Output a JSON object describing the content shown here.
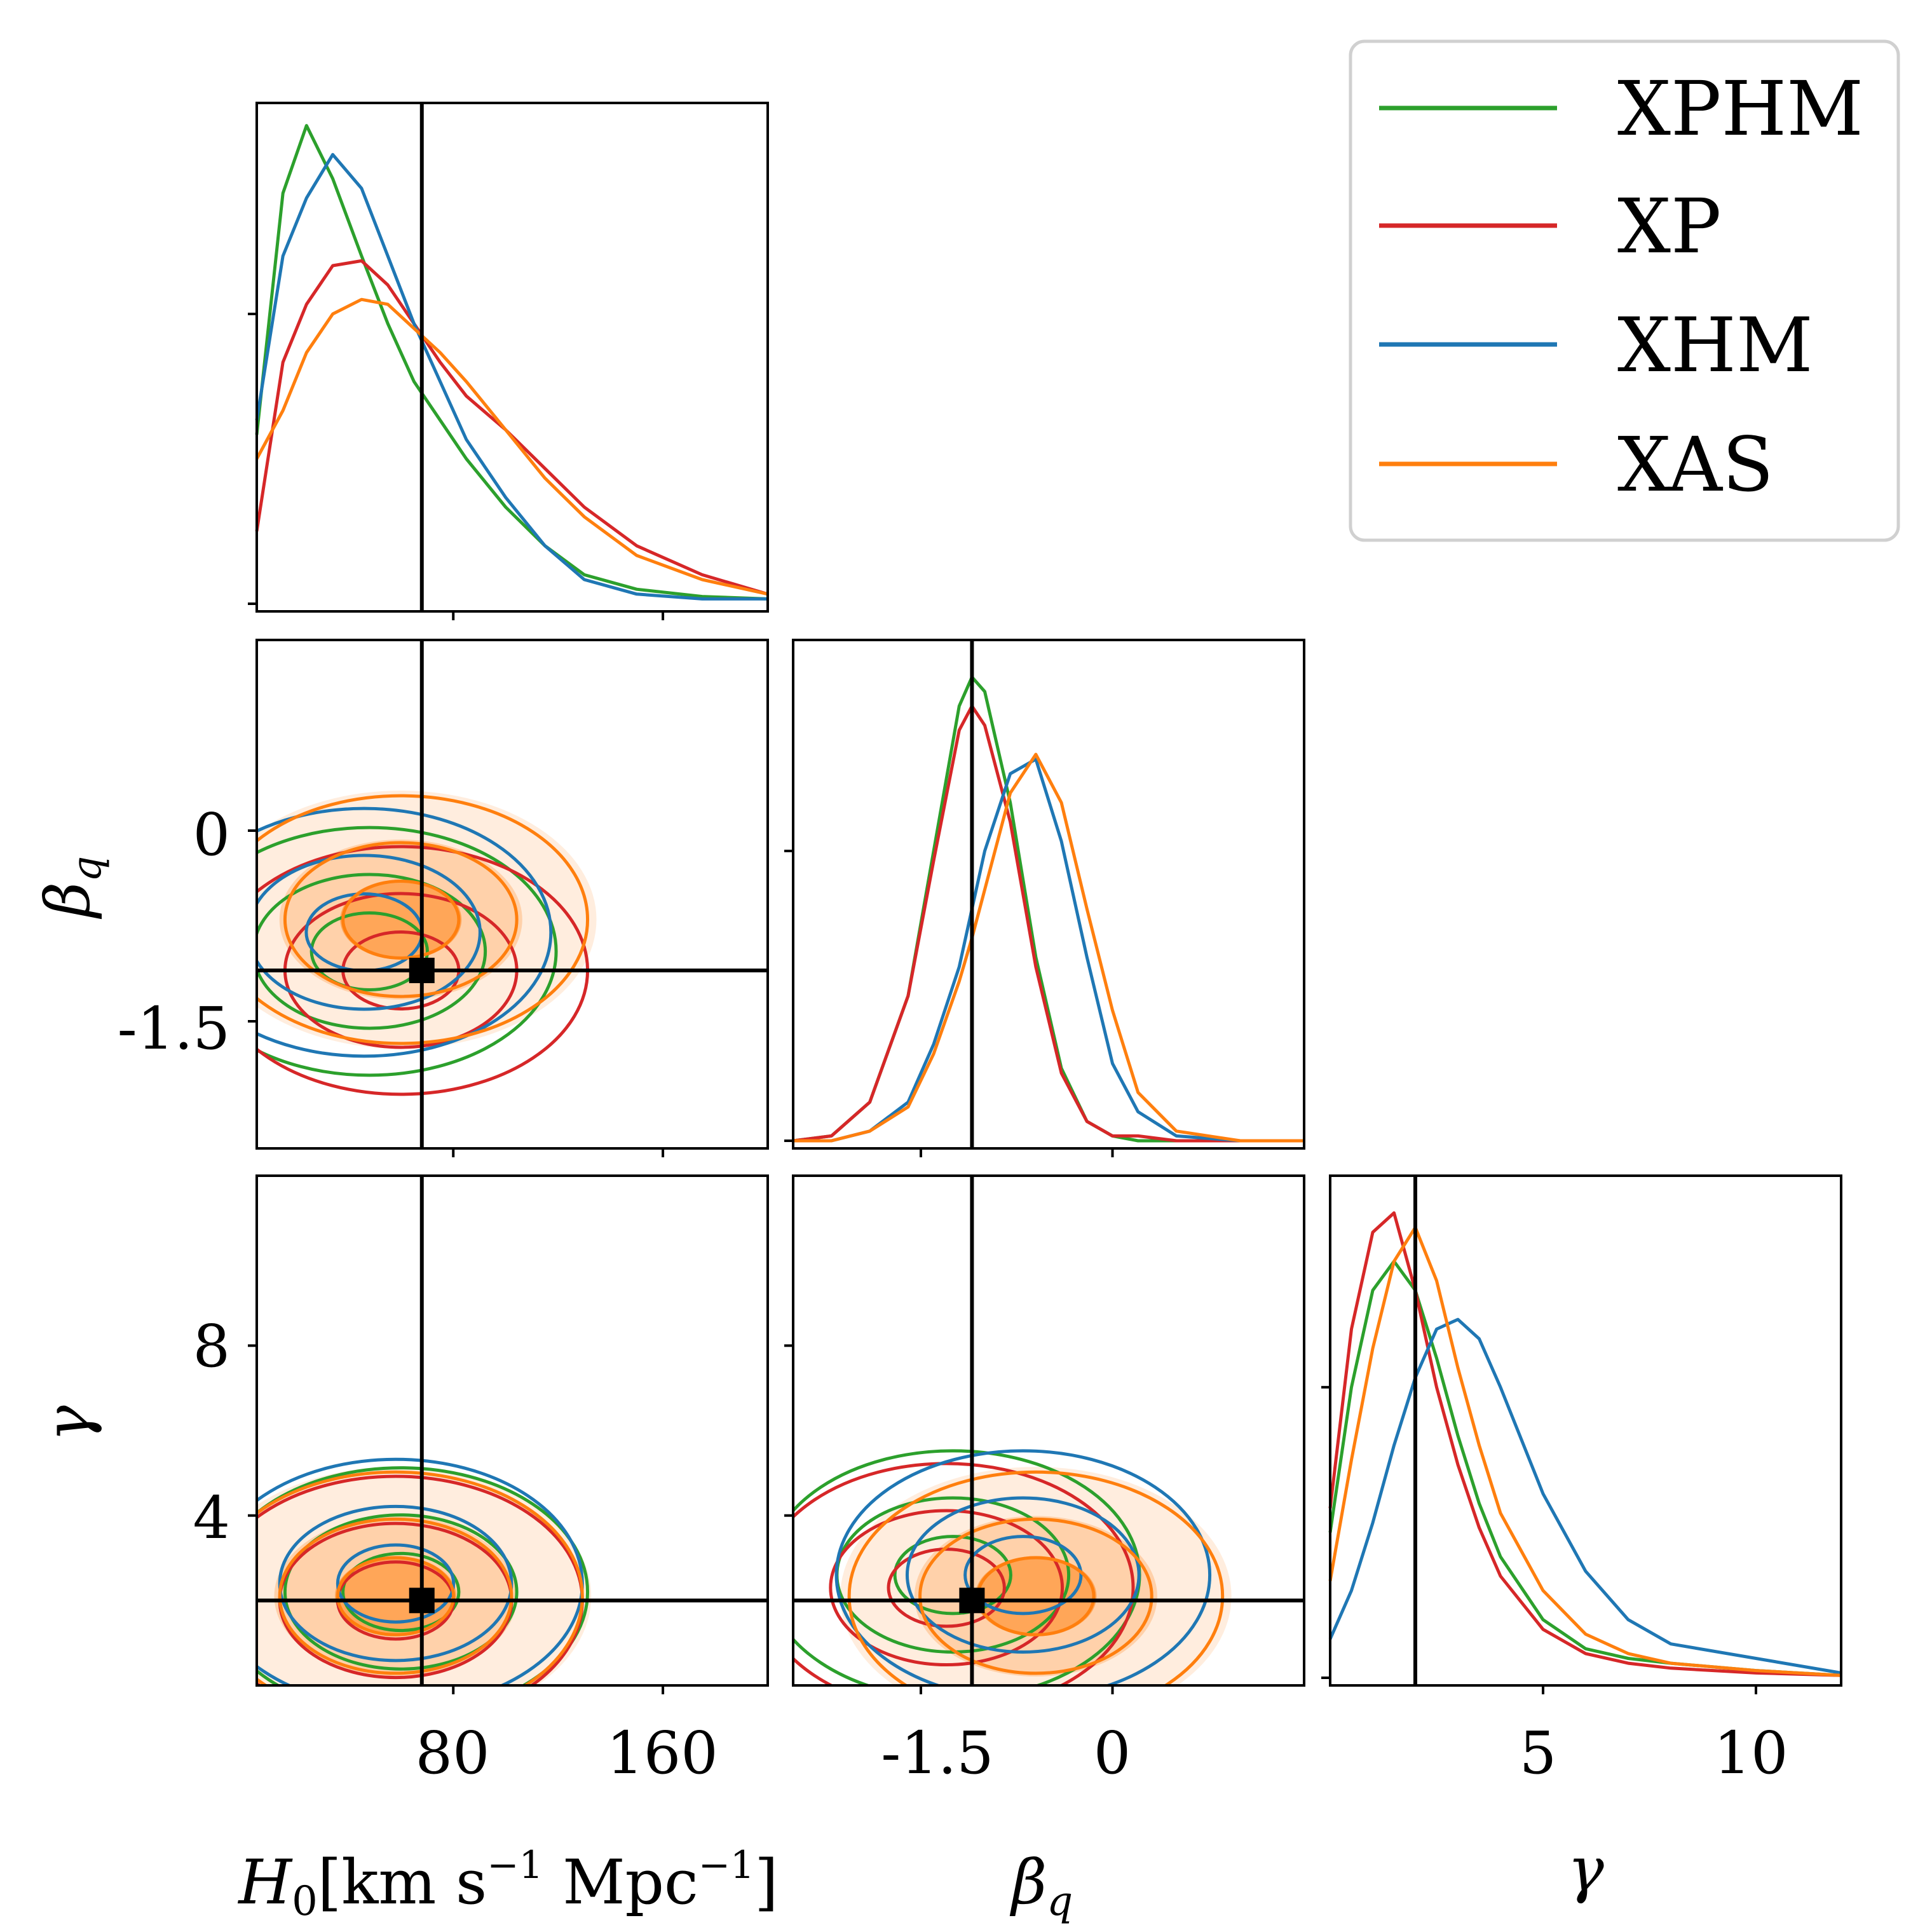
{
  "chart_data": {
    "type": "corner",
    "title": "",
    "legend": {
      "placement": "top-right",
      "entries": [
        {
          "label": "XPHM",
          "color": "#2ca02c"
        },
        {
          "label": "XP",
          "color": "#d62728"
        },
        {
          "label": "XHM",
          "color": "#1f77b4"
        },
        {
          "label": "XAS",
          "color": "#ff7f0e"
        }
      ]
    },
    "parameters": [
      {
        "name": "H0",
        "label_main": "H",
        "label_sub": "0",
        "label_units": "[km s",
        "label_sup1": "−1",
        "label_mid": " Mpc",
        "label_sup2": "−1",
        "label_end": "]",
        "range": [
          5,
          200
        ],
        "ticks": [
          80,
          160
        ],
        "tick_labels": [
          "80",
          "160"
        ],
        "truth": 68
      },
      {
        "name": "beta_q",
        "label_main": "β",
        "label_sub": "q",
        "range": [
          -2.5,
          1.5
        ],
        "ticks": [
          -1.5,
          0
        ],
        "tick_labels": [
          "-1.5",
          "0"
        ],
        "truth": -1.1
      },
      {
        "name": "gamma",
        "label_main": "γ",
        "range": [
          0,
          12
        ],
        "ticks": [
          4,
          8
        ],
        "tick_labels": [
          "4",
          "8"
        ],
        "diag_ticks": [
          5,
          10
        ],
        "diag_tick_labels": [
          "5",
          "10"
        ],
        "truth": 2
      }
    ],
    "marginals": {
      "H0": {
        "x": [
          5,
          15,
          24,
          34,
          45,
          55,
          65,
          75,
          85,
          100,
          115,
          130,
          150,
          175,
          200
        ],
        "series": [
          {
            "name": "XPHM",
            "values": [
              0.35,
              0.85,
              0.99,
              0.88,
              0.72,
              0.58,
              0.46,
              0.38,
              0.3,
              0.2,
              0.12,
              0.06,
              0.03,
              0.015,
              0.01
            ]
          },
          {
            "name": "XP",
            "values": [
              0.15,
              0.5,
              0.62,
              0.7,
              0.71,
              0.66,
              0.58,
              0.5,
              0.43,
              0.36,
              0.28,
              0.2,
              0.12,
              0.06,
              0.02
            ]
          },
          {
            "name": "XHM",
            "values": [
              0.38,
              0.72,
              0.84,
              0.93,
              0.86,
              0.72,
              0.58,
              0.46,
              0.34,
              0.22,
              0.12,
              0.05,
              0.02,
              0.01,
              0.01
            ]
          },
          {
            "name": "XAS",
            "values": [
              0.3,
              0.4,
              0.52,
              0.6,
              0.63,
              0.62,
              0.57,
              0.52,
              0.46,
              0.36,
              0.26,
              0.18,
              0.1,
              0.05,
              0.02
            ]
          }
        ]
      },
      "beta_q": {
        "x": [
          -2.5,
          -2.2,
          -1.9,
          -1.6,
          -1.4,
          -1.2,
          -1.1,
          -1.0,
          -0.8,
          -0.6,
          -0.4,
          -0.2,
          0.0,
          0.2,
          0.5,
          1.0,
          1.5
        ],
        "series": [
          {
            "name": "XPHM",
            "values": [
              0.0,
              0.01,
              0.08,
              0.3,
              0.6,
              0.9,
              0.96,
              0.93,
              0.7,
              0.38,
              0.15,
              0.04,
              0.01,
              0.0,
              0.0,
              0.0,
              0.0
            ]
          },
          {
            "name": "XP",
            "values": [
              0.0,
              0.01,
              0.08,
              0.3,
              0.58,
              0.85,
              0.9,
              0.86,
              0.66,
              0.36,
              0.14,
              0.04,
              0.01,
              0.01,
              0.0,
              0.0,
              0.0
            ]
          },
          {
            "name": "XHM",
            "values": [
              0.0,
              0.0,
              0.02,
              0.08,
              0.2,
              0.36,
              0.48,
              0.6,
              0.76,
              0.79,
              0.62,
              0.38,
              0.16,
              0.06,
              0.01,
              0.0,
              0.0
            ]
          },
          {
            "name": "XAS",
            "values": [
              0.0,
              0.0,
              0.02,
              0.07,
              0.18,
              0.33,
              0.42,
              0.52,
              0.72,
              0.8,
              0.7,
              0.48,
              0.27,
              0.1,
              0.02,
              0.0,
              0.0
            ]
          }
        ]
      },
      "gamma": {
        "x": [
          0,
          0.5,
          1.0,
          1.5,
          2.0,
          2.5,
          3.0,
          3.5,
          4.0,
          5.0,
          6.0,
          7.0,
          8.0,
          10.0,
          12.0
        ],
        "series": [
          {
            "name": "XPHM",
            "values": [
              0.3,
              0.6,
              0.8,
              0.86,
              0.8,
              0.66,
              0.5,
              0.36,
              0.25,
              0.12,
              0.06,
              0.04,
              0.03,
              0.015,
              0.005
            ]
          },
          {
            "name": "XP",
            "values": [
              0.35,
              0.72,
              0.92,
              0.96,
              0.8,
              0.6,
              0.44,
              0.31,
              0.21,
              0.1,
              0.05,
              0.03,
              0.02,
              0.01,
              0.005
            ]
          },
          {
            "name": "XHM",
            "values": [
              0.08,
              0.18,
              0.32,
              0.48,
              0.62,
              0.72,
              0.74,
              0.7,
              0.6,
              0.38,
              0.22,
              0.12,
              0.07,
              0.04,
              0.01
            ]
          },
          {
            "name": "XAS",
            "values": [
              0.2,
              0.45,
              0.68,
              0.86,
              0.93,
              0.82,
              0.64,
              0.48,
              0.34,
              0.18,
              0.09,
              0.05,
              0.03,
              0.015,
              0.005
            ]
          }
        ]
      }
    },
    "joint": [
      {
        "x": "H0",
        "y": "beta_q",
        "centers": {
          "XPHM": [
            48,
            -0.95
          ],
          "XP": [
            60,
            -1.1
          ],
          "XHM": [
            46,
            -0.8
          ],
          "XAS": [
            60,
            -0.7
          ]
        }
      },
      {
        "x": "H0",
        "y": "gamma",
        "centers": {
          "XPHM": [
            60,
            2.2
          ],
          "XP": [
            58,
            2.0
          ],
          "XHM": [
            58,
            2.4
          ],
          "XAS": [
            58,
            2.1
          ]
        }
      },
      {
        "x": "beta_q",
        "y": "gamma",
        "centers": {
          "XPHM": [
            -1.25,
            2.6
          ],
          "XP": [
            -1.3,
            2.3
          ],
          "XHM": [
            -0.7,
            2.6
          ],
          "XAS": [
            -0.6,
            2.1
          ]
        }
      }
    ]
  }
}
